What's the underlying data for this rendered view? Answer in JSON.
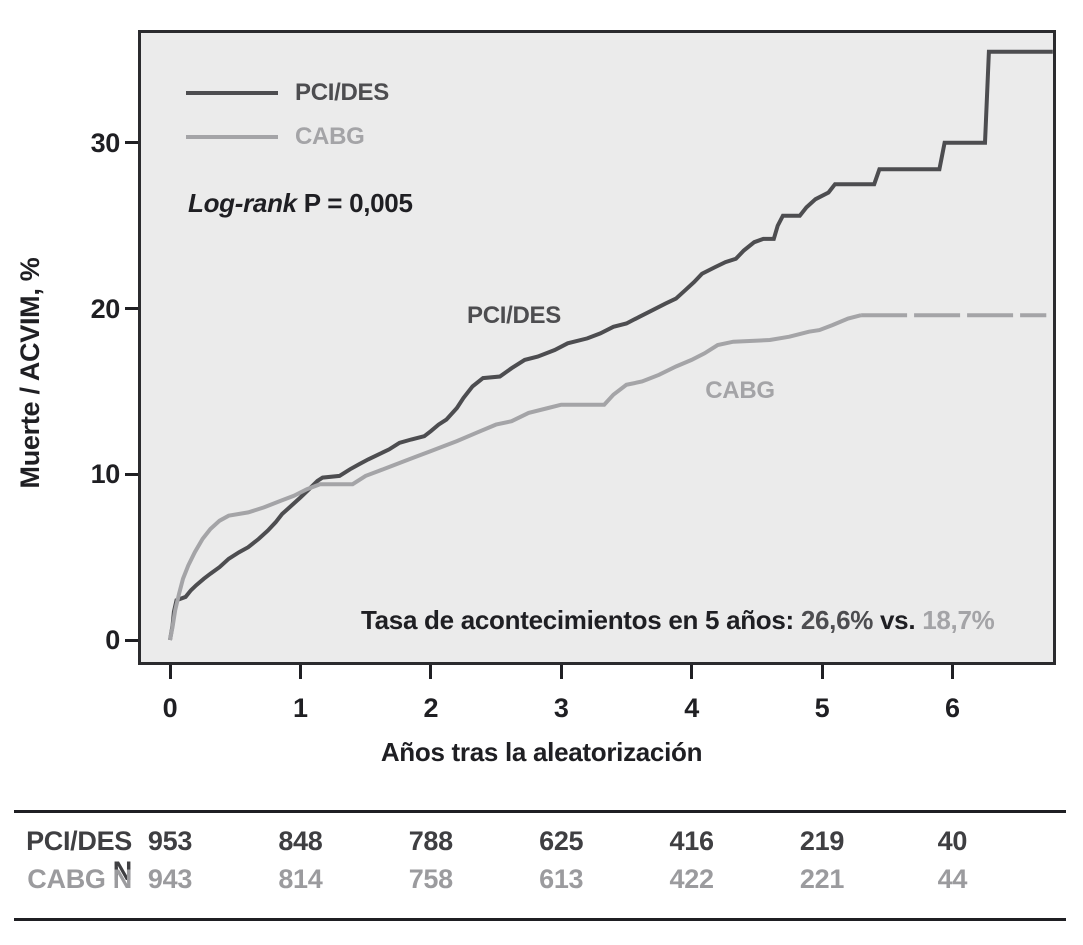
{
  "figure": {
    "colors": {
      "pci_des": "#4d4d50",
      "cabg": "#a4a4a7",
      "text": "#1f1f23",
      "plot_background": "#ebebeb"
    },
    "y_axis": {
      "label": "Muerte / ACVIM, %",
      "ticks": [
        "0",
        "10",
        "20",
        "30"
      ]
    },
    "x_axis": {
      "label": "Años tras la aleatorización",
      "ticks": [
        "0",
        "1",
        "2",
        "3",
        "4",
        "5",
        "6"
      ]
    },
    "legend": {
      "items": [
        {
          "label": "PCI/DES",
          "color": "#4d4d50"
        },
        {
          "label": "CABG",
          "color": "#a4a4a7"
        }
      ]
    },
    "logrank": {
      "prefix": "Log-rank",
      "stat": "P = 0,005"
    },
    "curve_labels": [
      {
        "text": "PCI/DES",
        "color": "#4d4d50"
      },
      {
        "text": "CABG",
        "color": "#a4a4a7"
      }
    ],
    "annotation": {
      "text": "Tasa de acontecimientos en 5 años:",
      "value1": "26,6%",
      "vs": "vs.",
      "value2": "18,7%",
      "value1_color": "#4d4d50",
      "value2_color": "#a4a4a7"
    },
    "risk_table": {
      "rows": [
        {
          "label": "PCI/DES N",
          "color": "#3f3f42",
          "values": [
            "953",
            "848",
            "788",
            "625",
            "416",
            "219",
            "40"
          ]
        },
        {
          "label": "CABG N",
          "color": "#9b9b9e",
          "values": [
            "943",
            "814",
            "758",
            "613",
            "422",
            "221",
            "44"
          ]
        }
      ]
    }
  },
  "chart_data": {
    "type": "line",
    "subtype": "kaplan-meier-cumulative-incidence",
    "title": "",
    "xlabel": "Años tras la aleatorización",
    "ylabel": "Muerte / ACVIM, %",
    "xlim": [
      -0.25,
      6.77
    ],
    "ylim": [
      -1.4,
      36.6
    ],
    "x_ticks": [
      0,
      1,
      2,
      3,
      4,
      5,
      6
    ],
    "y_ticks": [
      0,
      10,
      20,
      30
    ],
    "grid": false,
    "legend_position": "top-left-inside",
    "annotations": [
      "Log-rank P = 0,005",
      "Tasa de acontecimientos en 5 años: 26,6% vs. 18,7%"
    ],
    "series": [
      {
        "name": "PCI/DES",
        "color": "#4d4d50",
        "width": 4,
        "event_rate_5y": 26.6,
        "points": [
          [
            0,
            0
          ],
          [
            0.02,
            0.9
          ],
          [
            0.03,
            1.7
          ],
          [
            0.05,
            2.4
          ],
          [
            0.12,
            2.6
          ],
          [
            0.16,
            3.0
          ],
          [
            0.2,
            3.3
          ],
          [
            0.26,
            3.7
          ],
          [
            0.31,
            4.0
          ],
          [
            0.38,
            4.4
          ],
          [
            0.45,
            4.9
          ],
          [
            0.53,
            5.3
          ],
          [
            0.6,
            5.6
          ],
          [
            0.68,
            6.1
          ],
          [
            0.75,
            6.6
          ],
          [
            0.81,
            7.1
          ],
          [
            0.86,
            7.6
          ],
          [
            0.93,
            8.1
          ],
          [
            1.0,
            8.6
          ],
          [
            1.08,
            9.2
          ],
          [
            1.13,
            9.6
          ],
          [
            1.17,
            9.8
          ],
          [
            1.3,
            9.9
          ],
          [
            1.38,
            10.3
          ],
          [
            1.45,
            10.6
          ],
          [
            1.52,
            10.9
          ],
          [
            1.6,
            11.2
          ],
          [
            1.68,
            11.5
          ],
          [
            1.76,
            11.9
          ],
          [
            1.85,
            12.1
          ],
          [
            1.95,
            12.3
          ],
          [
            2.0,
            12.6
          ],
          [
            2.06,
            13.0
          ],
          [
            2.12,
            13.3
          ],
          [
            2.2,
            14.0
          ],
          [
            2.25,
            14.6
          ],
          [
            2.32,
            15.3
          ],
          [
            2.4,
            15.8
          ],
          [
            2.53,
            15.9
          ],
          [
            2.62,
            16.4
          ],
          [
            2.72,
            16.9
          ],
          [
            2.82,
            17.1
          ],
          [
            2.95,
            17.5
          ],
          [
            3.05,
            17.9
          ],
          [
            3.2,
            18.2
          ],
          [
            3.3,
            18.5
          ],
          [
            3.4,
            18.9
          ],
          [
            3.5,
            19.1
          ],
          [
            3.6,
            19.5
          ],
          [
            3.7,
            19.9
          ],
          [
            3.8,
            20.3
          ],
          [
            3.88,
            20.6
          ],
          [
            3.95,
            21.1
          ],
          [
            4.02,
            21.6
          ],
          [
            4.08,
            22.1
          ],
          [
            4.18,
            22.5
          ],
          [
            4.26,
            22.8
          ],
          [
            4.34,
            23.0
          ],
          [
            4.4,
            23.5
          ],
          [
            4.48,
            24.0
          ],
          [
            4.55,
            24.2
          ],
          [
            4.63,
            24.2
          ],
          [
            4.66,
            25.0
          ],
          [
            4.7,
            25.6
          ],
          [
            4.83,
            25.6
          ],
          [
            4.88,
            26.1
          ],
          [
            4.95,
            26.6
          ],
          [
            5.05,
            27.0
          ],
          [
            5.1,
            27.5
          ],
          [
            5.4,
            27.5
          ],
          [
            5.44,
            28.4
          ],
          [
            5.9,
            28.4
          ],
          [
            5.94,
            30.0
          ],
          [
            6.25,
            30.0
          ],
          [
            6.28,
            35.5
          ],
          [
            6.77,
            35.5
          ]
        ]
      },
      {
        "name": "CABG",
        "color": "#a4a4a7",
        "width": 4,
        "event_rate_5y": 18.7,
        "dash_tail_start": 5.3,
        "tail_dash": "46 7",
        "points": [
          [
            0,
            0
          ],
          [
            0.02,
            0.8
          ],
          [
            0.04,
            1.8
          ],
          [
            0.07,
            2.8
          ],
          [
            0.1,
            3.7
          ],
          [
            0.14,
            4.5
          ],
          [
            0.19,
            5.3
          ],
          [
            0.25,
            6.1
          ],
          [
            0.31,
            6.7
          ],
          [
            0.38,
            7.2
          ],
          [
            0.45,
            7.5
          ],
          [
            0.6,
            7.7
          ],
          [
            0.72,
            8.0
          ],
          [
            0.85,
            8.4
          ],
          [
            0.95,
            8.7
          ],
          [
            1.05,
            9.1
          ],
          [
            1.15,
            9.4
          ],
          [
            1.4,
            9.4
          ],
          [
            1.5,
            9.9
          ],
          [
            1.6,
            10.2
          ],
          [
            1.7,
            10.5
          ],
          [
            1.8,
            10.8
          ],
          [
            1.9,
            11.1
          ],
          [
            2.0,
            11.4
          ],
          [
            2.1,
            11.7
          ],
          [
            2.2,
            12.0
          ],
          [
            2.35,
            12.5
          ],
          [
            2.5,
            13.0
          ],
          [
            2.62,
            13.2
          ],
          [
            2.75,
            13.7
          ],
          [
            2.9,
            14.0
          ],
          [
            3.0,
            14.2
          ],
          [
            3.33,
            14.2
          ],
          [
            3.4,
            14.8
          ],
          [
            3.5,
            15.4
          ],
          [
            3.62,
            15.6
          ],
          [
            3.75,
            16.0
          ],
          [
            3.88,
            16.5
          ],
          [
            4.0,
            16.9
          ],
          [
            4.1,
            17.3
          ],
          [
            4.2,
            17.8
          ],
          [
            4.32,
            18.0
          ],
          [
            4.6,
            18.1
          ],
          [
            4.75,
            18.3
          ],
          [
            4.9,
            18.6
          ],
          [
            4.98,
            18.7
          ],
          [
            5.08,
            19.0
          ],
          [
            5.2,
            19.4
          ],
          [
            5.3,
            19.6
          ],
          [
            6.72,
            19.6
          ]
        ]
      }
    ],
    "risk_table": {
      "x_years": [
        0,
        1,
        2,
        3,
        4,
        5,
        6
      ],
      "rows": [
        {
          "name": "PCI/DES N",
          "values": [
            953,
            848,
            788,
            625,
            416,
            219,
            40
          ]
        },
        {
          "name": "CABG N",
          "values": [
            943,
            814,
            758,
            613,
            422,
            221,
            44
          ]
        }
      ]
    }
  }
}
